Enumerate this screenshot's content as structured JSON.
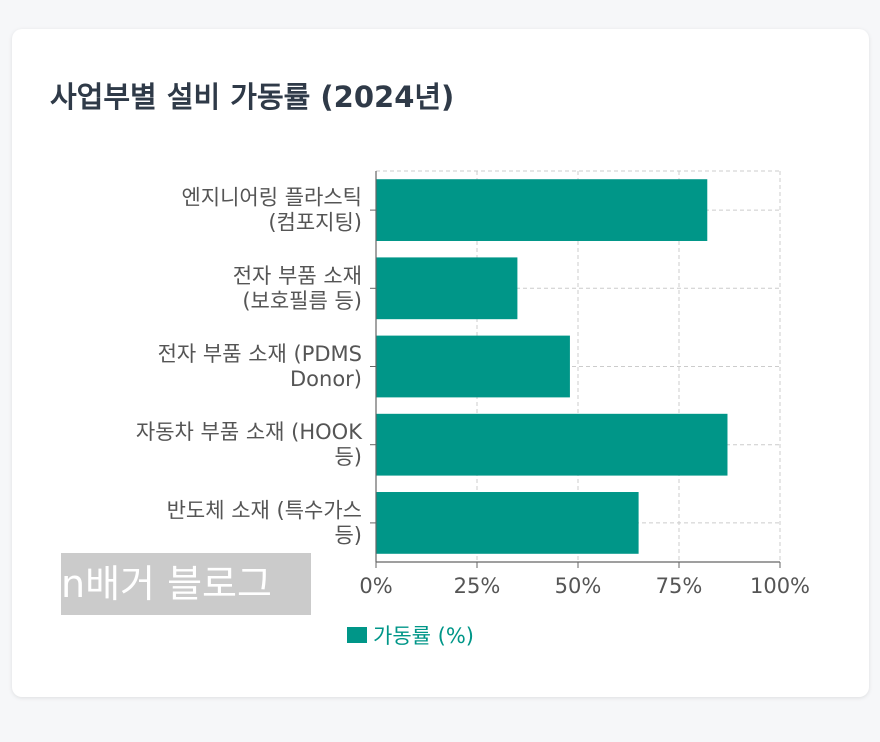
{
  "colors": {
    "bar": "#009688",
    "grid": "#cccccc",
    "axis": "#666666",
    "text": "#555555",
    "title": "#2f3a48"
  },
  "watermark": "n배거 블로그",
  "chart_data": {
    "type": "bar",
    "orientation": "horizontal",
    "title": "사업부별 설비 가동률 (2024년)",
    "categories": [
      [
        "엔지니어링 플라스틱",
        "(컴포지팅)"
      ],
      [
        "전자 부품 소재",
        "(보호필름 등)"
      ],
      [
        "전자 부품 소재 (PDMS",
        "Donor)"
      ],
      [
        "자동차 부품 소재 (HOOK",
        "등)"
      ],
      [
        "반도체 소재 (특수가스",
        "등)"
      ]
    ],
    "series": [
      {
        "name": "가동률 (%)",
        "values": [
          82,
          35,
          48,
          87,
          65
        ]
      }
    ],
    "xlim": [
      0,
      100
    ],
    "xticks": [
      "0%",
      "25%",
      "50%",
      "75%",
      "100%"
    ],
    "grid": true,
    "legend": "bottom-center"
  }
}
